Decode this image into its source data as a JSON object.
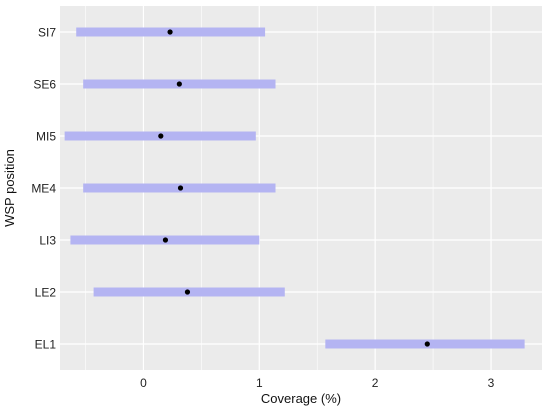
{
  "chart_data": {
    "type": "forest",
    "title": "",
    "xlabel": "Coverage (%)",
    "ylabel": "WSP position",
    "xlim": [
      -0.72,
      3.44
    ],
    "x_ticks": [
      0,
      1,
      2,
      3
    ],
    "x_tick_labels": [
      "0",
      "1",
      "2",
      "3"
    ],
    "grid": true,
    "interval_color": "#b4b4f2",
    "point_color": "#000000",
    "background_color": "#ebebeb",
    "grid_color": "#ffffff",
    "categories": [
      "SI7",
      "SE6",
      "MI5",
      "ME4",
      "LI3",
      "LE2",
      "EL1"
    ],
    "points": [
      0.23,
      0.31,
      0.15,
      0.32,
      0.19,
      0.38,
      2.45
    ],
    "lower": [
      -0.58,
      -0.52,
      -0.68,
      -0.52,
      -0.63,
      -0.43,
      1.57
    ],
    "upper": [
      1.05,
      1.14,
      0.97,
      1.14,
      1.0,
      1.22,
      3.29
    ]
  }
}
